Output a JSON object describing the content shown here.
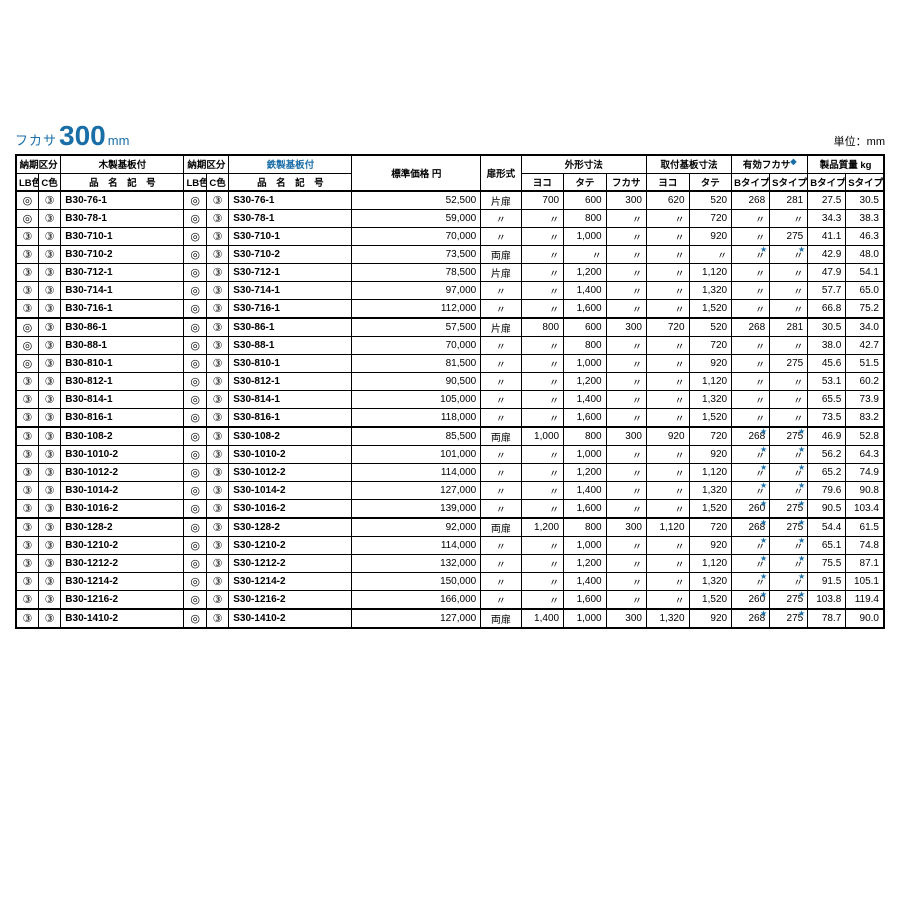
{
  "title": {
    "prefix": "フカサ",
    "value": "300",
    "unit": "mm"
  },
  "unit_label": "単位：mm",
  "headers": {
    "nouki1": "納期区分",
    "wood": "木製基板付",
    "nouki2": "納期区分",
    "steel": "鉄製基板付",
    "lb": "LB色",
    "c": "C色",
    "hinmei": "品　名　記　号",
    "price": "標準価格 円",
    "door": "扉形式",
    "gaikei": "外形寸法",
    "yoko": "ヨコ",
    "tate": "タテ",
    "fukasa": "フカサ",
    "toritsuke": "取付基板寸法",
    "yuuko": "有効フカサ",
    "mass": "製品質量 kg",
    "btype": "Bタイプ",
    "stype": "Sタイプ"
  },
  "colors": {
    "text": "#000000",
    "accent": "#1a6ea8",
    "background": "#ffffff",
    "border": "#000000"
  },
  "marks": {
    "ditto": "〃",
    "circle_double": "◎",
    "circle_num_3": "③"
  },
  "rows": [
    {
      "sec": true,
      "lb1": "◎",
      "c1": "③",
      "b": "B30-76-1",
      "lb2": "◎",
      "c2": "③",
      "s": "S30-76-1",
      "price": "52,500",
      "door": "片扉",
      "yoko": "700",
      "tate": "600",
      "fuk": "300",
      "tyoko": "620",
      "ttate": "520",
      "yb": "268",
      "ys": "281",
      "mb": "27.5",
      "ms": "30.5"
    },
    {
      "lb1": "◎",
      "c1": "③",
      "b": "B30-78-1",
      "lb2": "◎",
      "c2": "③",
      "s": "S30-78-1",
      "price": "59,000",
      "door": "〃",
      "yoko": "〃",
      "tate": "800",
      "fuk": "〃",
      "tyoko": "〃",
      "ttate": "720",
      "yb": "〃",
      "ys": "〃",
      "mb": "34.3",
      "ms": "38.3"
    },
    {
      "lb1": "③",
      "c1": "③",
      "b": "B30-710-1",
      "lb2": "◎",
      "c2": "③",
      "s": "S30-710-1",
      "price": "70,000",
      "door": "〃",
      "yoko": "〃",
      "tate": "1,000",
      "fuk": "〃",
      "tyoko": "〃",
      "ttate": "920",
      "yb": "〃",
      "ys": "275",
      "mb": "41.1",
      "ms": "46.3"
    },
    {
      "lb1": "③",
      "c1": "③",
      "b": "B30-710-2",
      "lb2": "◎",
      "c2": "③",
      "s": "S30-710-2",
      "price": "73,500",
      "door": "両扉",
      "yoko": "〃",
      "tate": "〃",
      "fuk": "〃",
      "tyoko": "〃",
      "ttate": "〃",
      "yb": "〃",
      "ys": "〃",
      "ybstar": true,
      "ysstar": true,
      "mb": "42.9",
      "ms": "48.0"
    },
    {
      "lb1": "③",
      "c1": "③",
      "b": "B30-712-1",
      "lb2": "◎",
      "c2": "③",
      "s": "S30-712-1",
      "price": "78,500",
      "door": "片扉",
      "yoko": "〃",
      "tate": "1,200",
      "fuk": "〃",
      "tyoko": "〃",
      "ttate": "1,120",
      "yb": "〃",
      "ys": "〃",
      "mb": "47.9",
      "ms": "54.1"
    },
    {
      "lb1": "③",
      "c1": "③",
      "b": "B30-714-1",
      "lb2": "◎",
      "c2": "③",
      "s": "S30-714-1",
      "price": "97,000",
      "door": "〃",
      "yoko": "〃",
      "tate": "1,400",
      "fuk": "〃",
      "tyoko": "〃",
      "ttate": "1,320",
      "yb": "〃",
      "ys": "〃",
      "mb": "57.7",
      "ms": "65.0"
    },
    {
      "lb1": "③",
      "c1": "③",
      "b": "B30-716-1",
      "lb2": "◎",
      "c2": "③",
      "s": "S30-716-1",
      "price": "112,000",
      "door": "〃",
      "yoko": "〃",
      "tate": "1,600",
      "fuk": "〃",
      "tyoko": "〃",
      "ttate": "1,520",
      "yb": "〃",
      "ys": "〃",
      "mb": "66.8",
      "ms": "75.2"
    },
    {
      "sec": true,
      "lb1": "◎",
      "c1": "③",
      "b": "B30-86-1",
      "lb2": "◎",
      "c2": "③",
      "s": "S30-86-1",
      "price": "57,500",
      "door": "片扉",
      "yoko": "800",
      "tate": "600",
      "fuk": "300",
      "tyoko": "720",
      "ttate": "520",
      "yb": "268",
      "ys": "281",
      "mb": "30.5",
      "ms": "34.0"
    },
    {
      "lb1": "◎",
      "c1": "③",
      "b": "B30-88-1",
      "lb2": "◎",
      "c2": "③",
      "s": "S30-88-1",
      "price": "70,000",
      "door": "〃",
      "yoko": "〃",
      "tate": "800",
      "fuk": "〃",
      "tyoko": "〃",
      "ttate": "720",
      "yb": "〃",
      "ys": "〃",
      "mb": "38.0",
      "ms": "42.7"
    },
    {
      "lb1": "◎",
      "c1": "③",
      "b": "B30-810-1",
      "lb2": "◎",
      "c2": "③",
      "s": "S30-810-1",
      "price": "81,500",
      "door": "〃",
      "yoko": "〃",
      "tate": "1,000",
      "fuk": "〃",
      "tyoko": "〃",
      "ttate": "920",
      "yb": "〃",
      "ys": "275",
      "mb": "45.6",
      "ms": "51.5"
    },
    {
      "lb1": "③",
      "c1": "③",
      "b": "B30-812-1",
      "lb2": "◎",
      "c2": "③",
      "s": "S30-812-1",
      "price": "90,500",
      "door": "〃",
      "yoko": "〃",
      "tate": "1,200",
      "fuk": "〃",
      "tyoko": "〃",
      "ttate": "1,120",
      "yb": "〃",
      "ys": "〃",
      "mb": "53.1",
      "ms": "60.2"
    },
    {
      "lb1": "③",
      "c1": "③",
      "b": "B30-814-1",
      "lb2": "◎",
      "c2": "③",
      "s": "S30-814-1",
      "price": "105,000",
      "door": "〃",
      "yoko": "〃",
      "tate": "1,400",
      "fuk": "〃",
      "tyoko": "〃",
      "ttate": "1,320",
      "yb": "〃",
      "ys": "〃",
      "mb": "65.5",
      "ms": "73.9"
    },
    {
      "lb1": "③",
      "c1": "③",
      "b": "B30-816-1",
      "lb2": "◎",
      "c2": "③",
      "s": "S30-816-1",
      "price": "118,000",
      "door": "〃",
      "yoko": "〃",
      "tate": "1,600",
      "fuk": "〃",
      "tyoko": "〃",
      "ttate": "1,520",
      "yb": "〃",
      "ys": "〃",
      "mb": "73.5",
      "ms": "83.2"
    },
    {
      "sec": true,
      "lb1": "③",
      "c1": "③",
      "b": "B30-108-2",
      "lb2": "◎",
      "c2": "③",
      "s": "S30-108-2",
      "price": "85,500",
      "door": "両扉",
      "yoko": "1,000",
      "tate": "800",
      "fuk": "300",
      "tyoko": "920",
      "ttate": "720",
      "yb": "268",
      "ys": "275",
      "ybstar": true,
      "ysstar": true,
      "mb": "46.9",
      "ms": "52.8"
    },
    {
      "lb1": "③",
      "c1": "③",
      "b": "B30-1010-2",
      "lb2": "◎",
      "c2": "③",
      "s": "S30-1010-2",
      "price": "101,000",
      "door": "〃",
      "yoko": "〃",
      "tate": "1,000",
      "fuk": "〃",
      "tyoko": "〃",
      "ttate": "920",
      "yb": "〃",
      "ys": "〃",
      "ybstar": true,
      "ysstar": true,
      "mb": "56.2",
      "ms": "64.3"
    },
    {
      "lb1": "③",
      "c1": "③",
      "b": "B30-1012-2",
      "lb2": "◎",
      "c2": "③",
      "s": "S30-1012-2",
      "price": "114,000",
      "door": "〃",
      "yoko": "〃",
      "tate": "1,200",
      "fuk": "〃",
      "tyoko": "〃",
      "ttate": "1,120",
      "yb": "〃",
      "ys": "〃",
      "ybstar": true,
      "ysstar": true,
      "mb": "65.2",
      "ms": "74.9"
    },
    {
      "lb1": "③",
      "c1": "③",
      "b": "B30-1014-2",
      "lb2": "◎",
      "c2": "③",
      "s": "S30-1014-2",
      "price": "127,000",
      "door": "〃",
      "yoko": "〃",
      "tate": "1,400",
      "fuk": "〃",
      "tyoko": "〃",
      "ttate": "1,320",
      "yb": "〃",
      "ys": "〃",
      "ybstar": true,
      "ysstar": true,
      "mb": "79.6",
      "ms": "90.8"
    },
    {
      "lb1": "③",
      "c1": "③",
      "b": "B30-1016-2",
      "lb2": "◎",
      "c2": "③",
      "s": "S30-1016-2",
      "price": "139,000",
      "door": "〃",
      "yoko": "〃",
      "tate": "1,600",
      "fuk": "〃",
      "tyoko": "〃",
      "ttate": "1,520",
      "yb": "260",
      "ys": "275",
      "ybstar": true,
      "ysstar": true,
      "mb": "90.5",
      "ms": "103.4"
    },
    {
      "sec": true,
      "lb1": "③",
      "c1": "③",
      "b": "B30-128-2",
      "lb2": "◎",
      "c2": "③",
      "s": "S30-128-2",
      "price": "92,000",
      "door": "両扉",
      "yoko": "1,200",
      "tate": "800",
      "fuk": "300",
      "tyoko": "1,120",
      "ttate": "720",
      "yb": "268",
      "ys": "275",
      "ybstar": true,
      "ysstar": true,
      "mb": "54.4",
      "ms": "61.5"
    },
    {
      "lb1": "③",
      "c1": "③",
      "b": "B30-1210-2",
      "lb2": "◎",
      "c2": "③",
      "s": "S30-1210-2",
      "price": "114,000",
      "door": "〃",
      "yoko": "〃",
      "tate": "1,000",
      "fuk": "〃",
      "tyoko": "〃",
      "ttate": "920",
      "yb": "〃",
      "ys": "〃",
      "ybstar": true,
      "ysstar": true,
      "mb": "65.1",
      "ms": "74.8"
    },
    {
      "lb1": "③",
      "c1": "③",
      "b": "B30-1212-2",
      "lb2": "◎",
      "c2": "③",
      "s": "S30-1212-2",
      "price": "132,000",
      "door": "〃",
      "yoko": "〃",
      "tate": "1,200",
      "fuk": "〃",
      "tyoko": "〃",
      "ttate": "1,120",
      "yb": "〃",
      "ys": "〃",
      "ybstar": true,
      "ysstar": true,
      "mb": "75.5",
      "ms": "87.1"
    },
    {
      "lb1": "③",
      "c1": "③",
      "b": "B30-1214-2",
      "lb2": "◎",
      "c2": "③",
      "s": "S30-1214-2",
      "price": "150,000",
      "door": "〃",
      "yoko": "〃",
      "tate": "1,400",
      "fuk": "〃",
      "tyoko": "〃",
      "ttate": "1,320",
      "yb": "〃",
      "ys": "〃",
      "ybstar": true,
      "ysstar": true,
      "mb": "91.5",
      "ms": "105.1"
    },
    {
      "lb1": "③",
      "c1": "③",
      "b": "B30-1216-2",
      "lb2": "◎",
      "c2": "③",
      "s": "S30-1216-2",
      "price": "166,000",
      "door": "〃",
      "yoko": "〃",
      "tate": "1,600",
      "fuk": "〃",
      "tyoko": "〃",
      "ttate": "1,520",
      "yb": "260",
      "ys": "275",
      "ybstar": true,
      "ysstar": true,
      "mb": "103.8",
      "ms": "119.4"
    },
    {
      "sec": true,
      "lb1": "③",
      "c1": "③",
      "b": "B30-1410-2",
      "lb2": "◎",
      "c2": "③",
      "s": "S30-1410-2",
      "price": "127,000",
      "door": "両扉",
      "yoko": "1,400",
      "tate": "1,000",
      "fuk": "300",
      "tyoko": "1,320",
      "ttate": "920",
      "yb": "268",
      "ys": "275",
      "ybstar": true,
      "ysstar": true,
      "mb": "78.7",
      "ms": "90.0"
    }
  ]
}
